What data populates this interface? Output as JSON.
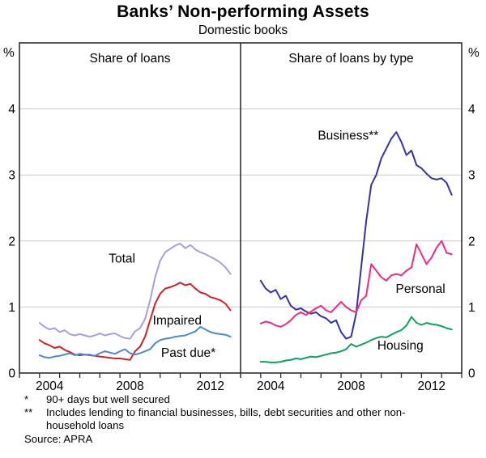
{
  "title": "Banks’ Non-performing Assets",
  "subtitle": "Domestic books",
  "axis": {
    "unit": "%",
    "yticks": [
      0,
      1,
      2,
      3,
      4
    ],
    "ylim": [
      0,
      5
    ],
    "grid": true
  },
  "chart_data": [
    {
      "type": "line",
      "panel": "left",
      "title": "Share of loans",
      "x_start": 2003.5,
      "x_step": 0.25,
      "xlim": [
        2002.5,
        2013.5
      ],
      "ylim": [
        0,
        5
      ],
      "xticks": [
        {
          "label": "2004",
          "t": 2004
        },
        {
          "label": "2008",
          "t": 2008
        },
        {
          "label": "2012",
          "t": 2012
        }
      ],
      "series": [
        {
          "name": "total",
          "label": "Total",
          "color": "#a4a1d8",
          "label_t": 2007.6,
          "label_v": 1.74,
          "values": [
            0.76,
            0.7,
            0.66,
            0.68,
            0.62,
            0.65,
            0.59,
            0.57,
            0.59,
            0.57,
            0.55,
            0.57,
            0.6,
            0.57,
            0.59,
            0.6,
            0.56,
            0.53,
            0.52,
            0.63,
            0.68,
            0.82,
            1.1,
            1.45,
            1.7,
            1.83,
            1.88,
            1.93,
            1.96,
            1.89,
            1.94,
            1.87,
            1.83,
            1.8,
            1.76,
            1.72,
            1.67,
            1.6,
            1.5
          ]
        },
        {
          "name": "impaired",
          "label": "Impaired",
          "color": "#cf2128",
          "label_t": 2010.35,
          "label_v": 0.8,
          "values": [
            0.5,
            0.45,
            0.42,
            0.38,
            0.4,
            0.35,
            0.32,
            0.28,
            0.27,
            0.28,
            0.27,
            0.26,
            0.25,
            0.24,
            0.23,
            0.22,
            0.22,
            0.21,
            0.2,
            0.33,
            0.4,
            0.55,
            0.8,
            1.05,
            1.2,
            1.28,
            1.3,
            1.33,
            1.37,
            1.33,
            1.35,
            1.28,
            1.22,
            1.2,
            1.15,
            1.13,
            1.1,
            1.05,
            0.95
          ]
        },
        {
          "name": "past-due",
          "label": "Past due*",
          "color": "#4f89c8",
          "label_t": 2010.9,
          "label_v": 0.31,
          "values": [
            0.27,
            0.24,
            0.23,
            0.25,
            0.26,
            0.28,
            0.3,
            0.27,
            0.29,
            0.28,
            0.28,
            0.26,
            0.3,
            0.33,
            0.31,
            0.29,
            0.33,
            0.36,
            0.3,
            0.28,
            0.3,
            0.33,
            0.36,
            0.45,
            0.5,
            0.52,
            0.53,
            0.55,
            0.56,
            0.57,
            0.6,
            0.63,
            0.7,
            0.66,
            0.62,
            0.6,
            0.59,
            0.58,
            0.55
          ]
        }
      ]
    },
    {
      "type": "line",
      "panel": "right",
      "title": "Share of loans by type",
      "x_start": 2003.5,
      "x_step": 0.25,
      "xlim": [
        2002.5,
        2013.5
      ],
      "ylim": [
        0,
        5
      ],
      "xticks": [
        {
          "label": "2004",
          "t": 2004
        },
        {
          "label": "2008",
          "t": 2008
        },
        {
          "label": "2012",
          "t": 2012
        }
      ],
      "series": [
        {
          "name": "business",
          "label": "Business**",
          "color": "#3335a0",
          "label_t": 2007.85,
          "label_v": 3.6,
          "values": [
            1.4,
            1.28,
            1.22,
            1.26,
            1.12,
            1.17,
            1.02,
            0.96,
            0.98,
            0.93,
            0.9,
            0.92,
            0.86,
            0.83,
            0.76,
            0.8,
            0.62,
            0.52,
            0.55,
            0.9,
            1.6,
            2.3,
            2.85,
            3.0,
            3.25,
            3.4,
            3.55,
            3.65,
            3.5,
            3.3,
            3.37,
            3.15,
            3.1,
            3.02,
            2.95,
            2.93,
            2.95,
            2.88,
            2.7
          ]
        },
        {
          "name": "personal",
          "label": "Personal",
          "color": "#ee2b83",
          "label_t": 2011.45,
          "label_v": 1.28,
          "values": [
            0.75,
            0.78,
            0.76,
            0.72,
            0.7,
            0.74,
            0.8,
            0.88,
            0.92,
            0.88,
            0.93,
            0.98,
            1.02,
            0.95,
            0.92,
            1.0,
            1.08,
            1.0,
            0.95,
            0.92,
            1.1,
            1.17,
            1.65,
            1.55,
            1.45,
            1.4,
            1.48,
            1.5,
            1.48,
            1.55,
            1.6,
            1.95,
            1.8,
            1.65,
            1.75,
            1.9,
            2.0,
            1.82,
            1.8
          ]
        },
        {
          "name": "housing",
          "label": "Housing",
          "color": "#0ea35c",
          "label_t": 2010.45,
          "label_v": 0.42,
          "values": [
            0.17,
            0.17,
            0.16,
            0.16,
            0.17,
            0.19,
            0.2,
            0.22,
            0.21,
            0.23,
            0.25,
            0.24,
            0.26,
            0.28,
            0.3,
            0.31,
            0.33,
            0.36,
            0.44,
            0.4,
            0.43,
            0.46,
            0.5,
            0.53,
            0.55,
            0.54,
            0.58,
            0.62,
            0.65,
            0.72,
            0.85,
            0.76,
            0.73,
            0.76,
            0.74,
            0.73,
            0.71,
            0.68,
            0.66
          ]
        }
      ]
    }
  ],
  "footnotes": [
    {
      "marker": "*",
      "text": "90+ days but well secured"
    },
    {
      "marker": "**",
      "text": "Includes lending to financial businesses, bills, debt securities and other non-household loans"
    }
  ],
  "source": "Source: APRA"
}
